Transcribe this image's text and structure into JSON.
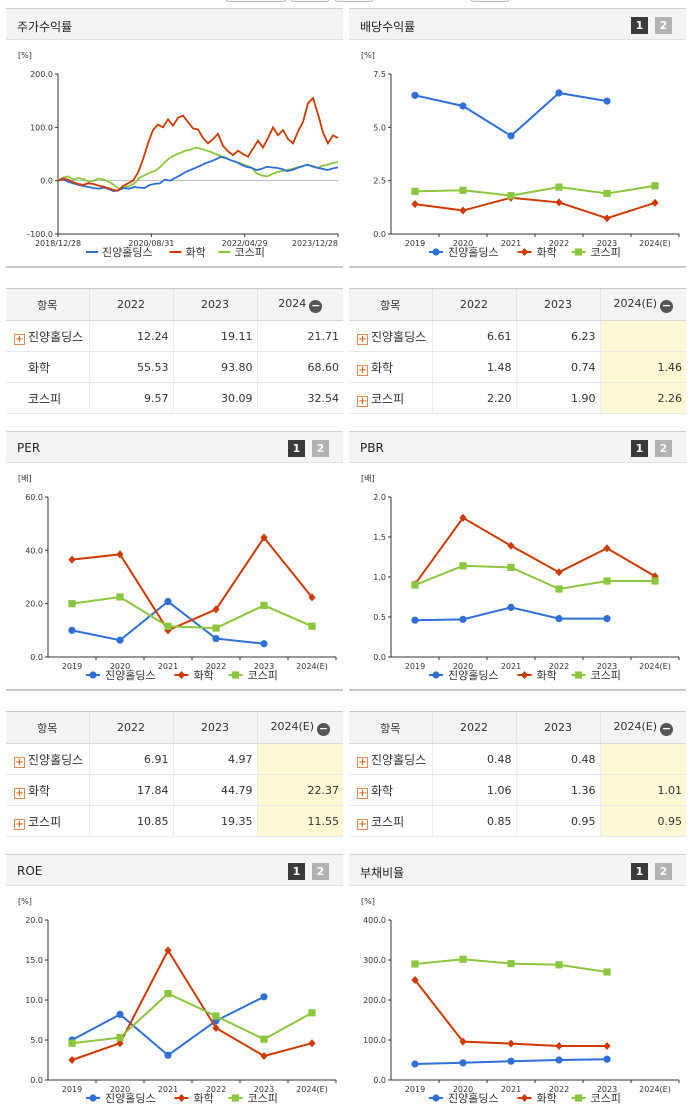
{
  "panels": {
    "stock_return": {
      "title": "주가수익률",
      "legend": [
        "진양홀딩스",
        "화학",
        "코스피"
      ]
    },
    "dividend": {
      "title": "배당수익률",
      "btn1": "1",
      "btn2": "2"
    },
    "per": {
      "title": "PER",
      "btn1": "1",
      "btn2": "2"
    },
    "pbr": {
      "title": "PBR",
      "btn1": "1",
      "btn2": "2"
    },
    "roe": {
      "title": "ROE",
      "btn1": "1",
      "btn2": "2"
    },
    "debt": {
      "title": "부채비율",
      "btn1": "1",
      "btn2": "2"
    }
  },
  "colors": {
    "company": "#2f6fd6",
    "chemical": "#cf3a00",
    "kospi": "#8cc63e"
  },
  "tables": {
    "stock_return": {
      "headers": [
        "항목",
        "2022",
        "2023",
        "2024"
      ],
      "rows": [
        {
          "name": "진양홀딩스",
          "plus": true,
          "values": [
            "12.24",
            "19.11",
            "21.71"
          ]
        },
        {
          "name": "화학",
          "plus": false,
          "values": [
            "55.53",
            "93.80",
            "68.60"
          ]
        },
        {
          "name": "코스피",
          "plus": false,
          "values": [
            "9.57",
            "30.09",
            "32.54"
          ]
        }
      ]
    },
    "dividend": {
      "headers": [
        "항목",
        "2022",
        "2023",
        "2024(E)"
      ],
      "rows": [
        {
          "name": "진양홀딩스",
          "plus": true,
          "values": [
            "6.61",
            "6.23",
            ""
          ]
        },
        {
          "name": "화학",
          "plus": true,
          "values": [
            "1.48",
            "0.74",
            "1.46"
          ]
        },
        {
          "name": "코스피",
          "plus": true,
          "values": [
            "2.20",
            "1.90",
            "2.26"
          ]
        }
      ]
    },
    "per": {
      "headers": [
        "항목",
        "2022",
        "2023",
        "2024(E)"
      ],
      "rows": [
        {
          "name": "진양홀딩스",
          "plus": true,
          "values": [
            "6.91",
            "4.97",
            ""
          ]
        },
        {
          "name": "화학",
          "plus": true,
          "values": [
            "17.84",
            "44.79",
            "22.37"
          ]
        },
        {
          "name": "코스피",
          "plus": true,
          "values": [
            "10.85",
            "19.35",
            "11.55"
          ]
        }
      ]
    },
    "pbr": {
      "headers": [
        "항목",
        "2022",
        "2023",
        "2024(E)"
      ],
      "rows": [
        {
          "name": "진양홀딩스",
          "plus": true,
          "values": [
            "0.48",
            "0.48",
            ""
          ]
        },
        {
          "name": "화학",
          "plus": true,
          "values": [
            "1.06",
            "1.36",
            "1.01"
          ]
        },
        {
          "name": "코스피",
          "plus": true,
          "values": [
            "0.85",
            "0.95",
            "0.95"
          ]
        }
      ]
    }
  },
  "chart_data": [
    {
      "id": "stock_return",
      "type": "line",
      "unit": "[%]",
      "ylim": [
        -100,
        200
      ],
      "yticks": [
        "200.0",
        "100.0",
        "0.0",
        "-100.0"
      ],
      "x_ticks": [
        "2018/12/28",
        "2020/08/31",
        "2022/04/29",
        "2023/12/28"
      ],
      "series": [
        {
          "name": "진양홀딩스",
          "values": [
            0,
            3,
            -2,
            -5,
            -8,
            -10,
            -12,
            -14,
            -15,
            -13,
            -16,
            -20,
            -17,
            -14,
            -15,
            -12,
            -13,
            -14,
            -8,
            -6,
            -5,
            2,
            0,
            5,
            10,
            16,
            20,
            24,
            28,
            33,
            36,
            40,
            45,
            42,
            38,
            35,
            30,
            26,
            24,
            20,
            22,
            26,
            25,
            24,
            22,
            18,
            20,
            24,
            27,
            30,
            27,
            24,
            22,
            20,
            23,
            25
          ]
        },
        {
          "name": "화학",
          "values": [
            0,
            4,
            2,
            -3,
            -6,
            -8,
            -5,
            -6,
            -9,
            -11,
            -14,
            -17,
            -19,
            -10,
            -5,
            0,
            15,
            40,
            70,
            95,
            105,
            100,
            115,
            103,
            118,
            122,
            110,
            98,
            96,
            80,
            70,
            78,
            88,
            65,
            55,
            48,
            56,
            50,
            45,
            60,
            75,
            62,
            80,
            100,
            85,
            95,
            78,
            70,
            92,
            110,
            145,
            155,
            125,
            90,
            70,
            85,
            80
          ]
        },
        {
          "name": "코스피",
          "values": [
            0,
            6,
            8,
            2,
            5,
            3,
            -2,
            0,
            4,
            2,
            -2,
            -8,
            -15,
            -12,
            -10,
            -5,
            5,
            10,
            15,
            18,
            25,
            35,
            43,
            48,
            52,
            56,
            58,
            62,
            60,
            57,
            54,
            50,
            46,
            43,
            38,
            35,
            32,
            28,
            25,
            14,
            10,
            8,
            12,
            16,
            18,
            20,
            22,
            25,
            27,
            30,
            26,
            24,
            28,
            30,
            33,
            35
          ]
        }
      ]
    },
    {
      "id": "dividend",
      "type": "line",
      "unit": "[%]",
      "ylim": [
        0,
        7.5
      ],
      "yticks": [
        "7.5",
        "5.0",
        "2.5",
        "0.0"
      ],
      "categories": [
        "2019",
        "2020",
        "2021",
        "2022",
        "2023",
        "2024(E)"
      ],
      "series": [
        {
          "name": "진양홀딩스",
          "values": [
            6.5,
            6.0,
            4.6,
            6.61,
            6.23,
            null
          ]
        },
        {
          "name": "화학",
          "values": [
            1.4,
            1.1,
            1.7,
            1.48,
            0.74,
            1.46
          ]
        },
        {
          "name": "코스피",
          "values": [
            2.0,
            2.05,
            1.8,
            2.2,
            1.9,
            2.26
          ]
        }
      ]
    },
    {
      "id": "per",
      "type": "line",
      "unit": "[배]",
      "ylim": [
        0,
        60
      ],
      "yticks": [
        "60.0",
        "40.0",
        "20.0",
        "0.0"
      ],
      "categories": [
        "2019",
        "2020",
        "2021",
        "2022",
        "2023",
        "2024(E)"
      ],
      "series": [
        {
          "name": "진양홀딩스",
          "values": [
            10.0,
            6.3,
            20.8,
            6.91,
            4.97,
            null
          ]
        },
        {
          "name": "화학",
          "values": [
            36.5,
            38.5,
            10.0,
            17.84,
            44.79,
            22.37
          ]
        },
        {
          "name": "코스피",
          "values": [
            20.0,
            22.5,
            11.5,
            10.85,
            19.35,
            11.55
          ]
        }
      ]
    },
    {
      "id": "pbr",
      "type": "line",
      "unit": "[배]",
      "ylim": [
        0,
        2.0
      ],
      "yticks": [
        "2.0",
        "1.5",
        "1.0",
        "0.5",
        "0.0"
      ],
      "categories": [
        "2019",
        "2020",
        "2021",
        "2022",
        "2023",
        "2024(E)"
      ],
      "series": [
        {
          "name": "진양홀딩스",
          "values": [
            0.46,
            0.47,
            0.62,
            0.48,
            0.48,
            null
          ]
        },
        {
          "name": "화학",
          "values": [
            0.91,
            1.74,
            1.39,
            1.06,
            1.36,
            1.01
          ]
        },
        {
          "name": "코스피",
          "values": [
            0.9,
            1.14,
            1.12,
            0.85,
            0.95,
            0.95
          ]
        }
      ]
    },
    {
      "id": "roe",
      "type": "line",
      "unit": "[%]",
      "ylim": [
        0,
        20
      ],
      "yticks": [
        "20.0",
        "15.0",
        "10.0",
        "5.0",
        "0.0"
      ],
      "categories": [
        "2019",
        "2020",
        "2021",
        "2022",
        "2023",
        "2024(E)"
      ],
      "series": [
        {
          "name": "진양홀딩스",
          "values": [
            5.0,
            8.2,
            3.1,
            7.4,
            10.4,
            null
          ]
        },
        {
          "name": "화학",
          "values": [
            2.5,
            4.6,
            16.2,
            6.5,
            3.0,
            4.6
          ]
        },
        {
          "name": "코스피",
          "values": [
            4.6,
            5.3,
            10.8,
            8.0,
            5.1,
            8.4
          ]
        }
      ]
    },
    {
      "id": "debt",
      "type": "line",
      "unit": "[%]",
      "ylim": [
        0,
        400
      ],
      "yticks": [
        "400.0",
        "300.0",
        "200.0",
        "100.0",
        "0.0"
      ],
      "categories": [
        "2019",
        "2020",
        "2021",
        "2022",
        "2023",
        "2024(E)"
      ],
      "series": [
        {
          "name": "진양홀딩스",
          "values": [
            40,
            43,
            47,
            50,
            52,
            null
          ]
        },
        {
          "name": "화학",
          "values": [
            250,
            96,
            91,
            85,
            85,
            null
          ]
        },
        {
          "name": "코스피",
          "values": [
            290,
            302,
            291,
            288,
            270,
            null
          ]
        }
      ]
    }
  ]
}
